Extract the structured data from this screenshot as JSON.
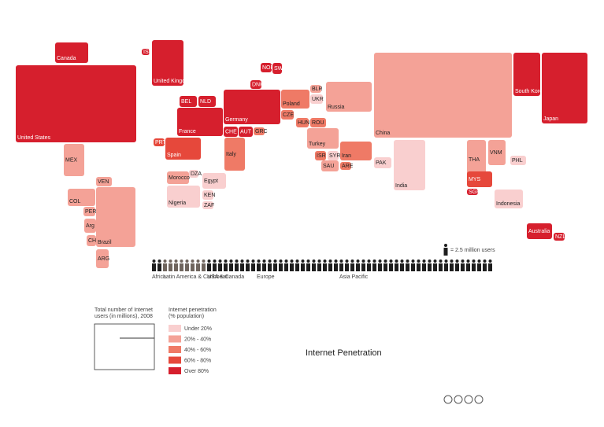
{
  "title": "Internet Penetration",
  "legend": {
    "users_title": [
      "Total number of Internet",
      "users (in millions), 2008"
    ],
    "penetration_title": [
      "Internet penetration",
      "(% population)"
    ],
    "classes": [
      {
        "label": "Under 20%",
        "color": "#f9cfcf"
      },
      {
        "label": "20% - 40%",
        "color": "#f4a297"
      },
      {
        "label": "40% - 60%",
        "color": "#ef7a66"
      },
      {
        "label": "60% - 80%",
        "color": "#e6483b"
      },
      {
        "label": "Over 80%",
        "color": "#d61f2d"
      }
    ]
  },
  "pictogram": {
    "unit_label": "= 2.5 million users",
    "groups": [
      {
        "name": "Africa",
        "count": 2,
        "color": "#1e1e1e"
      },
      {
        "name": "Latin America & Caribbean",
        "count": 8,
        "color": "#6f655e"
      },
      {
        "name": "USA & Canada",
        "count": 9,
        "color": "#1e1e1e"
      },
      {
        "name": "Europe",
        "count": 15,
        "color": "#1e1e1e"
      },
      {
        "name": "Asia Pacific",
        "count": 28,
        "color": "#1e1e1e"
      }
    ]
  },
  "countries": [
    {
      "label": "Canada",
      "color": "#d61f2d"
    },
    {
      "label": "United States",
      "color": "#d61f2d"
    },
    {
      "label": "MEX",
      "color": "#f4a297"
    },
    {
      "label": "VEN",
      "color": "#f4a297"
    },
    {
      "label": "COL",
      "color": "#f4a297"
    },
    {
      "label": "PER",
      "color": "#f4a297"
    },
    {
      "label": "Arg",
      "color": "#f4a297"
    },
    {
      "label": "CHL",
      "color": "#f4a297"
    },
    {
      "label": "Brazil",
      "color": "#f4a297"
    },
    {
      "label": "ARG",
      "color": "#f4a297"
    },
    {
      "label": "ISL",
      "color": "#d61f2d"
    },
    {
      "label": "United Kingdom",
      "color": "#d61f2d"
    },
    {
      "label": "BEL",
      "color": "#d61f2d"
    },
    {
      "label": "NLD",
      "color": "#d61f2d"
    },
    {
      "label": "France",
      "color": "#d61f2d"
    },
    {
      "label": "Germany",
      "color": "#d61f2d"
    },
    {
      "label": "CHE",
      "color": "#d61f2d"
    },
    {
      "label": "AUT",
      "color": "#d61f2d"
    },
    {
      "label": "PRT",
      "color": "#e6483b"
    },
    {
      "label": "Spain",
      "color": "#e6483b"
    },
    {
      "label": "Italy",
      "color": "#ef7a66"
    },
    {
      "label": "NOR",
      "color": "#d61f2d"
    },
    {
      "label": "SWE",
      "color": "#d61f2d"
    },
    {
      "label": "DNK",
      "color": "#d61f2d"
    },
    {
      "label": "Poland",
      "color": "#ef7a66"
    },
    {
      "label": "CZE",
      "color": "#ef7a66"
    },
    {
      "label": "HUN",
      "color": "#ef7a66"
    },
    {
      "label": "ROU",
      "color": "#ef7a66"
    },
    {
      "label": "BLR",
      "color": "#f4a297"
    },
    {
      "label": "UKR",
      "color": "#f9cfcf"
    },
    {
      "label": "Russia",
      "color": "#f4a297"
    },
    {
      "label": "GRC",
      "color": "#ef7a66"
    },
    {
      "label": "Turkey",
      "color": "#f4a297"
    },
    {
      "label": "ISR",
      "color": "#ef7a66"
    },
    {
      "label": "SYR",
      "color": "#f9cfcf"
    },
    {
      "label": "SAU",
      "color": "#f4a297"
    },
    {
      "label": "Iran",
      "color": "#ef7a66"
    },
    {
      "label": "ARE",
      "color": "#ef7a66"
    },
    {
      "label": "Morocco",
      "color": "#f4a297"
    },
    {
      "label": "DZA",
      "color": "#f9cfcf"
    },
    {
      "label": "Egypt",
      "color": "#f9cfcf"
    },
    {
      "label": "Nigeria",
      "color": "#f9cfcf"
    },
    {
      "label": "KEN",
      "color": "#f9cfcf"
    },
    {
      "label": "ZAF",
      "color": "#f9cfcf"
    },
    {
      "label": "China",
      "color": "#f4a297"
    },
    {
      "label": "PAK",
      "color": "#f9cfcf"
    },
    {
      "label": "India",
      "color": "#f9cfcf"
    },
    {
      "label": "South Korea",
      "color": "#d61f2d"
    },
    {
      "label": "Japan",
      "color": "#d61f2d"
    },
    {
      "label": "THA",
      "color": "#f4a297"
    },
    {
      "label": "VNM",
      "color": "#f4a297"
    },
    {
      "label": "PHL",
      "color": "#f9cfcf"
    },
    {
      "label": "MYS",
      "color": "#e6483b"
    },
    {
      "label": "SGP",
      "color": "#d61f2d"
    },
    {
      "label": "Indonesia",
      "color": "#f9cfcf"
    },
    {
      "label": "Australia",
      "color": "#d61f2d"
    },
    {
      "label": "NZL",
      "color": "#d61f2d"
    }
  ]
}
